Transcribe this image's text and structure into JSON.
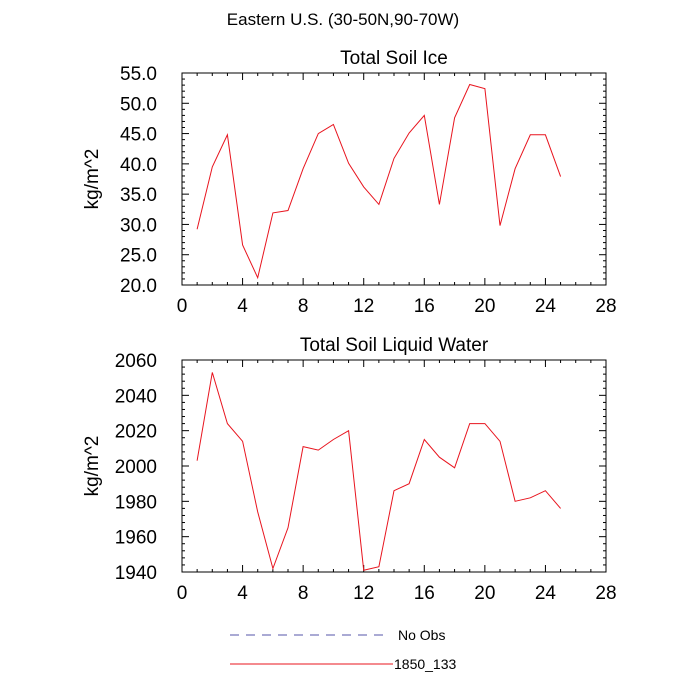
{
  "figure_title": "Eastern U.S. (30-50N,90-70W)",
  "legend": {
    "placement": "bottom",
    "items": [
      {
        "label": "No Obs",
        "color": "#5555aa",
        "style": "dashed"
      },
      {
        "label": "1850_133",
        "color": "#e8141e",
        "style": "solid"
      }
    ]
  },
  "chart_data": [
    {
      "type": "line",
      "title": "Total Soil Ice",
      "xlabel": "",
      "ylabel": "kg/m^2",
      "xlim": [
        0,
        28
      ],
      "ylim": [
        20,
        55
      ],
      "xticks": [
        "0",
        "4",
        "8",
        "12",
        "16",
        "20",
        "24",
        "28"
      ],
      "yticks": [
        "20.0",
        "25.0",
        "30.0",
        "35.0",
        "40.0",
        "45.0",
        "50.0",
        "55.0"
      ],
      "grid": false,
      "series": [
        {
          "name": "1850_133",
          "color": "#e8141e",
          "x": [
            1,
            2,
            3,
            4,
            5,
            6,
            7,
            8,
            9,
            10,
            11,
            12,
            13,
            14,
            15,
            16,
            17,
            18,
            19,
            20,
            21,
            22,
            23,
            24,
            25
          ],
          "y": [
            29.2,
            39.5,
            44.8,
            26.6,
            21.2,
            31.9,
            32.3,
            39.2,
            45.0,
            46.5,
            40.1,
            36.2,
            33.3,
            40.9,
            45.1,
            48.0,
            33.3,
            47.6,
            53.1,
            52.4,
            29.8,
            39.2,
            44.8,
            44.8,
            37.9
          ]
        }
      ]
    },
    {
      "type": "line",
      "title": "Total Soil Liquid Water",
      "xlabel": "",
      "ylabel": "kg/m^2",
      "xlim": [
        0,
        28
      ],
      "ylim": [
        1940,
        2060
      ],
      "xticks": [
        "0",
        "4",
        "8",
        "12",
        "16",
        "20",
        "24",
        "28"
      ],
      "yticks": [
        "1940",
        "1960",
        "1980",
        "2000",
        "2020",
        "2040",
        "2060"
      ],
      "grid": false,
      "series": [
        {
          "name": "1850_133",
          "color": "#e8141e",
          "x": [
            1,
            2,
            3,
            4,
            5,
            6,
            7,
            8,
            9,
            10,
            11,
            12,
            13,
            14,
            15,
            16,
            17,
            18,
            19,
            20,
            21,
            22,
            23,
            24,
            25
          ],
          "y": [
            2003,
            2053,
            2024,
            2014,
            1974,
            1942,
            1965,
            2011,
            2009,
            2015,
            2020,
            1941,
            1943,
            1986,
            1990,
            2015,
            2005,
            1999,
            2024,
            2024,
            2014,
            1980,
            1982,
            1986,
            1976
          ]
        }
      ]
    }
  ]
}
